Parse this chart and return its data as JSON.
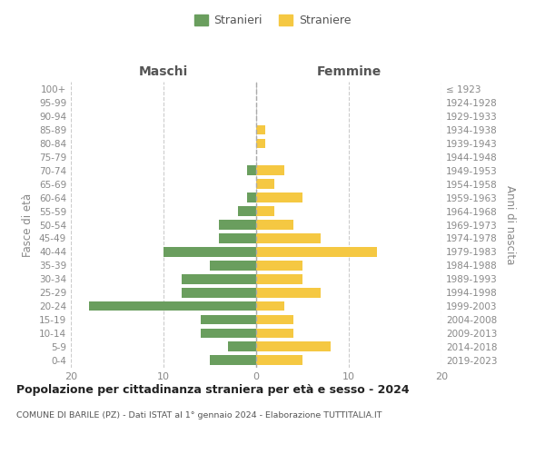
{
  "age_groups": [
    "0-4",
    "5-9",
    "10-14",
    "15-19",
    "20-24",
    "25-29",
    "30-34",
    "35-39",
    "40-44",
    "45-49",
    "50-54",
    "55-59",
    "60-64",
    "65-69",
    "70-74",
    "75-79",
    "80-84",
    "85-89",
    "90-94",
    "95-99",
    "100+"
  ],
  "birth_years": [
    "2019-2023",
    "2014-2018",
    "2009-2013",
    "2004-2008",
    "1999-2003",
    "1994-1998",
    "1989-1993",
    "1984-1988",
    "1979-1983",
    "1974-1978",
    "1969-1973",
    "1964-1968",
    "1959-1963",
    "1954-1958",
    "1949-1953",
    "1944-1948",
    "1939-1943",
    "1934-1938",
    "1929-1933",
    "1924-1928",
    "≤ 1923"
  ],
  "maschi": [
    5,
    3,
    6,
    6,
    18,
    8,
    8,
    5,
    10,
    4,
    4,
    2,
    1,
    0,
    1,
    0,
    0,
    0,
    0,
    0,
    0
  ],
  "femmine": [
    5,
    8,
    4,
    4,
    3,
    7,
    5,
    5,
    13,
    7,
    4,
    2,
    5,
    2,
    3,
    0,
    1,
    1,
    0,
    0,
    0
  ],
  "maschi_color": "#6a9e5e",
  "femmine_color": "#f5c842",
  "title": "Popolazione per cittadinanza straniera per età e sesso - 2024",
  "subtitle": "COMUNE DI BARILE (PZ) - Dati ISTAT al 1° gennaio 2024 - Elaborazione TUTTITALIA.IT",
  "xlabel_left": "Maschi",
  "xlabel_right": "Femmine",
  "ylabel_left": "Fasce di età",
  "ylabel_right": "Anni di nascita",
  "legend_maschi": "Stranieri",
  "legend_femmine": "Straniere",
  "xlim": 20,
  "background_color": "#ffffff",
  "grid_color": "#cccccc",
  "tick_label_color": "#888888",
  "header_label_color": "#555555",
  "title_color": "#222222",
  "subtitle_color": "#555555",
  "zeroline_color": "#aaaaaa"
}
